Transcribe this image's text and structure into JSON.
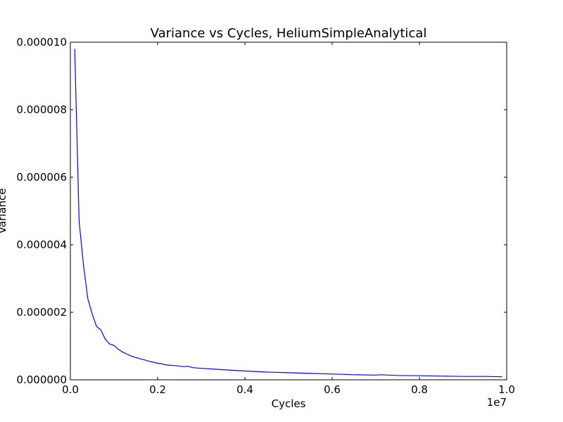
{
  "chart_data": {
    "type": "line",
    "title": "Variance vs Cycles, HeliumSimpleAnalytical",
    "xlabel": "Cycles",
    "ylabel": "Variance",
    "x_offset_label": "1e7",
    "xlim": [
      0,
      10000000
    ],
    "ylim": [
      0,
      1e-05
    ],
    "xticks": [
      {
        "value": 0,
        "label": "0.0"
      },
      {
        "value": 2000000,
        "label": "0.2"
      },
      {
        "value": 4000000,
        "label": "0.4"
      },
      {
        "value": 6000000,
        "label": "0.6"
      },
      {
        "value": 8000000,
        "label": "0.8"
      },
      {
        "value": 10000000,
        "label": "1.0"
      }
    ],
    "yticks": [
      {
        "value": 0,
        "label": "0.000000"
      },
      {
        "value": 2e-06,
        "label": "0.000002"
      },
      {
        "value": 4e-06,
        "label": "0.000004"
      },
      {
        "value": 6e-06,
        "label": "0.000006"
      },
      {
        "value": 8e-06,
        "label": "0.000008"
      },
      {
        "value": 1e-05,
        "label": "0.000010"
      }
    ],
    "grid": false,
    "line_color": "#0000ff",
    "series": [
      {
        "x": [
          100000,
          200000,
          300000,
          400000,
          500000,
          600000,
          700000,
          800000,
          900000,
          1000000,
          1100000,
          1200000,
          1300000,
          1400000,
          1500000,
          1600000,
          1700000,
          1800000,
          1900000,
          2000000,
          2100000,
          2200000,
          2400000,
          2600000,
          2700000,
          2800000,
          3000000,
          3500000,
          4000000,
          4500000,
          5000000,
          5500000,
          6000000,
          6300000,
          6500000,
          7000000,
          7100000,
          7500000,
          8000000,
          8500000,
          9000000,
          9500000,
          9900000
        ],
        "values": [
          9.8e-06,
          4.7e-06,
          3.4e-06,
          2.4e-06,
          1.95e-06,
          1.58e-06,
          1.48e-06,
          1.2e-06,
          1.06e-06,
          1.02e-06,
          9e-07,
          8.2e-07,
          7.6e-07,
          7e-07,
          6.6e-07,
          6.2e-07,
          5.9e-07,
          5.5e-07,
          5.2e-07,
          4.9e-07,
          4.7e-07,
          4.4e-07,
          4.2e-07,
          3.9e-07,
          4e-07,
          3.6e-07,
          3.4e-07,
          3e-07,
          2.6e-07,
          2.3e-07,
          2.1e-07,
          1.9e-07,
          1.7e-07,
          1.6e-07,
          1.5e-07,
          1.4e-07,
          1.5e-07,
          1.3e-07,
          1.2e-07,
          1.1e-07,
          1e-07,
          1e-07,
          9e-08
        ]
      }
    ]
  }
}
